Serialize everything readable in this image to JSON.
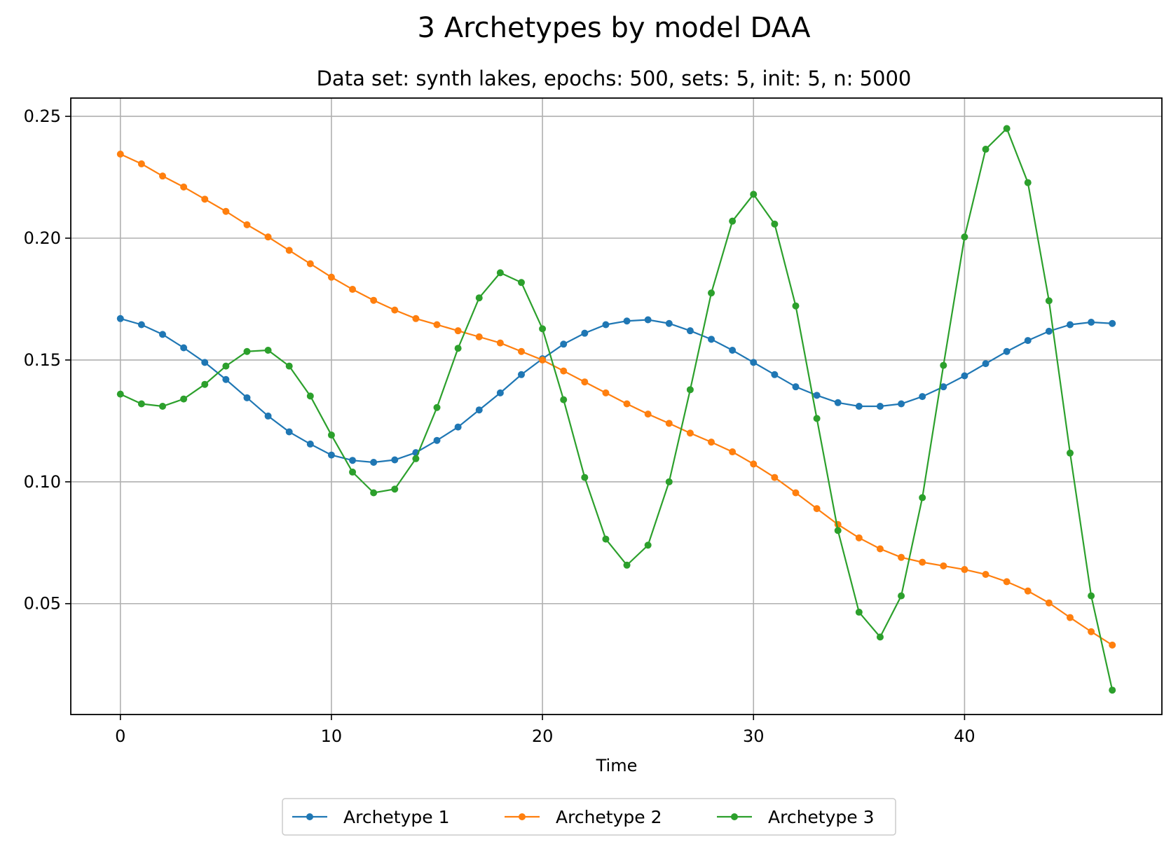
{
  "chart_data": {
    "type": "line",
    "title": "3 Archetypes by model DAA",
    "subtitle": "Data set: synth lakes, epochs: 500, sets: 5, init: 5, n: 5000",
    "xlabel": "Time",
    "ylabel": "",
    "xlim": [
      -2.35,
      49.35
    ],
    "ylim": [
      0.0045,
      0.2575
    ],
    "xticks": [
      0,
      10,
      20,
      30,
      40
    ],
    "xtick_labels": [
      "0",
      "10",
      "20",
      "30",
      "40"
    ],
    "yticks": [
      0.05,
      0.1,
      0.15,
      0.2,
      0.25
    ],
    "ytick_labels": [
      "0.05",
      "0.10",
      "0.15",
      "0.20",
      "0.25"
    ],
    "grid": true,
    "legend_position": "bottom-center",
    "x": [
      0,
      1,
      2,
      3,
      4,
      5,
      6,
      7,
      8,
      9,
      10,
      11,
      12,
      13,
      14,
      15,
      16,
      17,
      18,
      19,
      20,
      21,
      22,
      23,
      24,
      25,
      26,
      27,
      28,
      29,
      30,
      31,
      32,
      33,
      34,
      35,
      36,
      37,
      38,
      39,
      40,
      41,
      42,
      43,
      44,
      45,
      46,
      47
    ],
    "series": [
      {
        "name": "Archetype 1",
        "color": "#1f77b4",
        "values": [
          0.167,
          0.1645,
          0.1605,
          0.155,
          0.149,
          0.142,
          0.1345,
          0.127,
          0.1205,
          0.1155,
          0.111,
          0.1088,
          0.108,
          0.109,
          0.112,
          0.117,
          0.1225,
          0.1295,
          0.1365,
          0.144,
          0.1505,
          0.1565,
          0.161,
          0.1645,
          0.166,
          0.1665,
          0.165,
          0.162,
          0.1585,
          0.154,
          0.149,
          0.144,
          0.139,
          0.1355,
          0.1325,
          0.131,
          0.131,
          0.132,
          0.135,
          0.139,
          0.1435,
          0.1485,
          0.1535,
          0.158,
          0.1618,
          0.1645,
          0.1655,
          0.165
        ]
      },
      {
        "name": "Archetype 2",
        "color": "#ff7f0e",
        "values": [
          0.2345,
          0.2305,
          0.2255,
          0.221,
          0.216,
          0.211,
          0.2055,
          0.2005,
          0.195,
          0.1895,
          0.184,
          0.179,
          0.1745,
          0.1705,
          0.167,
          0.1645,
          0.162,
          0.1595,
          0.157,
          0.1535,
          0.15,
          0.1455,
          0.141,
          0.1365,
          0.132,
          0.1278,
          0.124,
          0.12,
          0.1163,
          0.1123,
          0.1073,
          0.1018,
          0.0955,
          0.089,
          0.0825,
          0.077,
          0.0725,
          0.069,
          0.067,
          0.0655,
          0.064,
          0.062,
          0.059,
          0.0552,
          0.0503,
          0.0443,
          0.0385,
          0.033
        ]
      },
      {
        "name": "Archetype 3",
        "color": "#2ca02c",
        "values": [
          0.136,
          0.132,
          0.131,
          0.134,
          0.14,
          0.1475,
          0.1535,
          0.154,
          0.1475,
          0.1352,
          0.1192,
          0.104,
          0.0955,
          0.097,
          0.1095,
          0.1305,
          0.1548,
          0.1755,
          0.1858,
          0.1818,
          0.1628,
          0.1337,
          0.1018,
          0.0765,
          0.0658,
          0.074,
          0.1,
          0.1378,
          0.1775,
          0.207,
          0.218,
          0.2058,
          0.1722,
          0.126,
          0.08,
          0.0465,
          0.0363,
          0.0532,
          0.0935,
          0.1478,
          0.2005,
          0.2365,
          0.245,
          0.2228,
          0.1743,
          0.1118,
          0.0532,
          0.0145
        ]
      }
    ]
  }
}
